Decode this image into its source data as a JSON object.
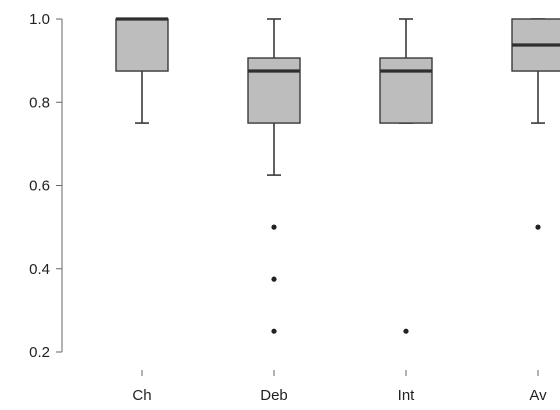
{
  "chart_data": {
    "type": "box",
    "categories": [
      "Ch",
      "Deb",
      "Int",
      "Av"
    ],
    "y_ticks": [
      {
        "value": 0.2,
        "label": "0.2"
      },
      {
        "value": 0.4,
        "label": "0.4"
      },
      {
        "value": 0.6,
        "label": "0.6"
      },
      {
        "value": 0.8,
        "label": "0.8"
      },
      {
        "value": 1.0,
        "label": "1.0"
      }
    ],
    "ylim": [
      0.2,
      1.0
    ],
    "grid": false,
    "legend": "none",
    "boxes": [
      {
        "category": "Ch",
        "whisker_low": 0.75,
        "q1": 0.875,
        "median": 1.0,
        "q3": 1.0,
        "whisker_high": 1.0,
        "outliers": []
      },
      {
        "category": "Deb",
        "whisker_low": 0.625,
        "q1": 0.75,
        "median": 0.875,
        "q3": 0.9063,
        "whisker_high": 1.0,
        "outliers": [
          0.5,
          0.375,
          0.25
        ]
      },
      {
        "category": "Int",
        "whisker_low": 0.75,
        "q1": 0.75,
        "median": 0.875,
        "q3": 0.9063,
        "whisker_high": 1.0,
        "outliers": [
          0.25
        ]
      },
      {
        "category": "Av",
        "whisker_low": 0.75,
        "q1": 0.875,
        "median": 0.9375,
        "q3": 1.0,
        "whisker_high": 1.0,
        "outliers": [
          0.5
        ]
      }
    ],
    "colors": {
      "box_fill": "#bdbdbd",
      "box_stroke": "#3a3a3a",
      "median": "#2f2f2f",
      "whisker": "#3a3a3a",
      "outlier": "#222222",
      "axis": "#666666"
    }
  }
}
